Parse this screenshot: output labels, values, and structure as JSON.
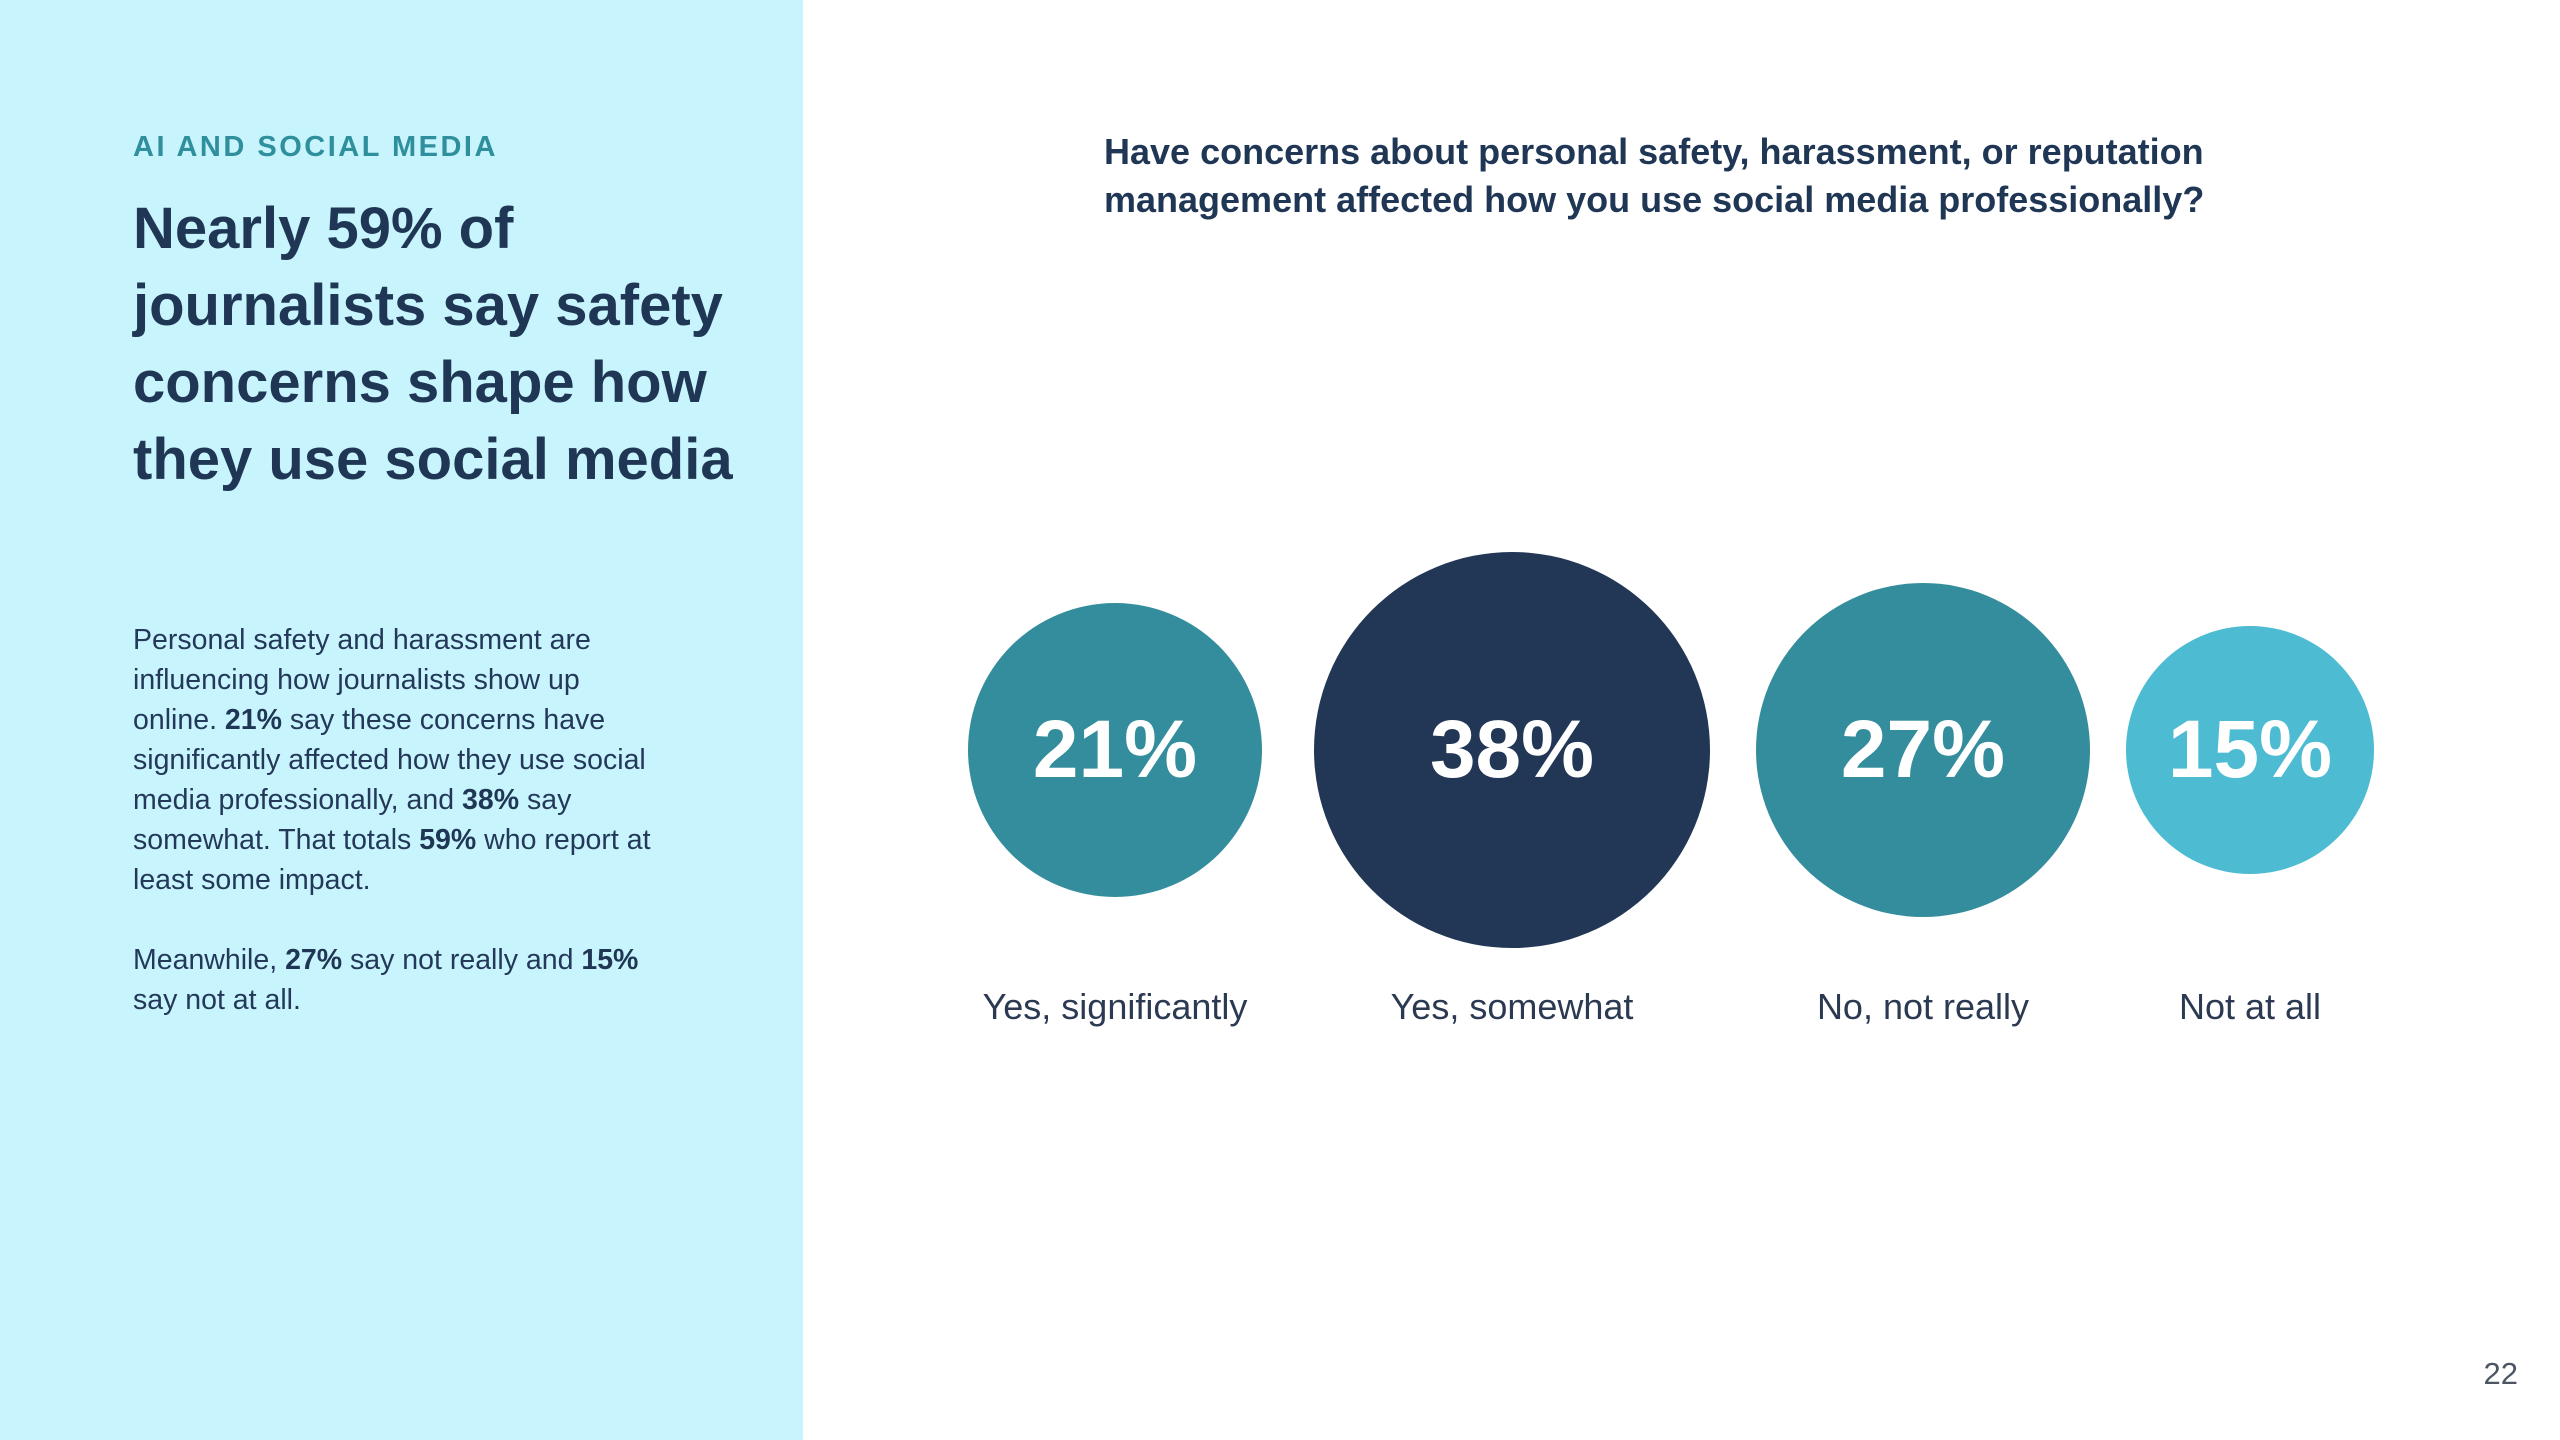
{
  "section_label": "AI AND SOCIAL MEDIA",
  "headline": "Nearly 59% of journalists say safety concerns shape how they use social media",
  "body": {
    "p1": {
      "t1": "Personal safety and harassment are influencing how journalists show up online. ",
      "b1": "21%",
      "t2": " say these concerns have significantly affected how they use social media professionally, and ",
      "b2": "38%",
      "t3": " say somewhat. That totals ",
      "b3": "59%",
      "t4": " who report at least some impact."
    },
    "p2": {
      "t1": "Meanwhile, ",
      "b1": "27%",
      "t2": " say not really and ",
      "b2": "15%",
      "t3": " say not at all."
    }
  },
  "page_number": "22",
  "chart_data": {
    "type": "bubble",
    "title": "Have concerns about personal safety, harassment, or reputation management affected how you use social media professionally?",
    "categories": [
      "Yes, significantly",
      "Yes, somewhat",
      "No, not really",
      "Not at all"
    ],
    "values": [
      21,
      38,
      27,
      15
    ],
    "value_labels": [
      "21%",
      "38%",
      "27%",
      "15%"
    ],
    "colors": [
      "#348d9c",
      "#223655",
      "#348d9c",
      "#4dbbd2"
    ],
    "unit": "%"
  }
}
